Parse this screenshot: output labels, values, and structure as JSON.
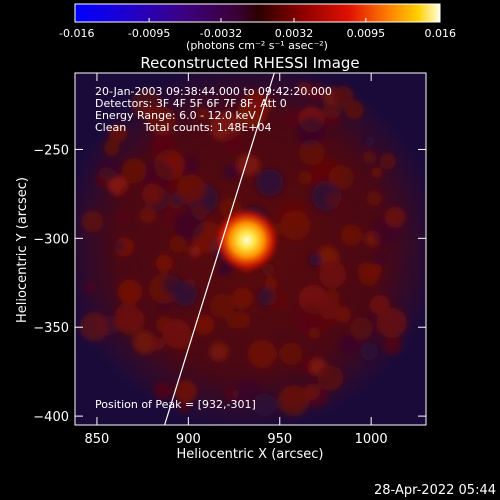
{
  "colorbar": {
    "tick_labels": [
      "-0.016",
      "-0.0095",
      "-0.0032",
      "0.0032",
      "0.0095",
      "0.016"
    ],
    "ticks": [
      -0.016,
      -0.0095,
      -0.0032,
      0.0032,
      0.0095,
      0.016
    ],
    "range": [
      -0.016,
      0.016
    ],
    "units_text": "(photons cm⁻² s⁻¹ asec⁻²)"
  },
  "chart_data": {
    "type": "heatmap",
    "title": "Reconstructed RHESSI Image",
    "xlabel": "Heliocentric X (arcsec)",
    "ylabel": "Heliocentric Y (arcsec)",
    "xlim": [
      838,
      1030
    ],
    "ylim": [
      -405,
      -207
    ],
    "xticks": [
      850,
      900,
      950,
      1000
    ],
    "yticks": [
      -250,
      -300,
      -350,
      -400
    ],
    "source_peak": {
      "x": 932,
      "y": -301
    },
    "limb_line": [
      [
        887,
        -405
      ],
      [
        947,
        -207
      ]
    ]
  },
  "annotations": {
    "time_range": "20-Jan-2003 09:38:44.000 to 09:42:20.000",
    "detectors": "Detectors: 3F 4F 5F 6F 7F 8F, Att 0",
    "energy": "Energy Range: 6.0 - 12.0 keV",
    "clean": "Clean     Total counts: 1.48E+04",
    "peak": "Position of Peak = [932,-301]"
  },
  "footer": {
    "timestamp": "28-Apr-2022 05:44"
  }
}
